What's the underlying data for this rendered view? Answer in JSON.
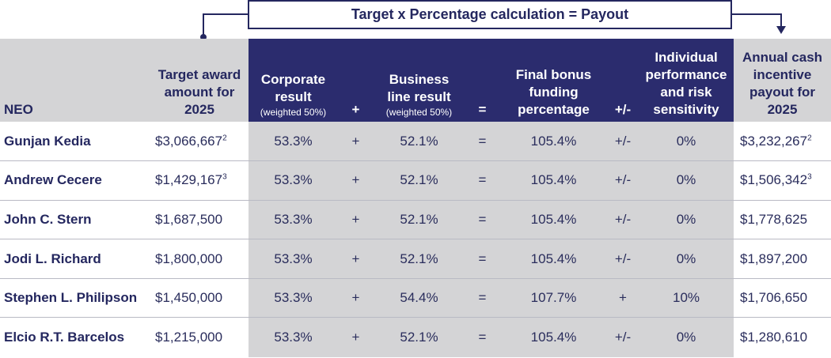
{
  "banner": "Target x Percentage calculation = Payout",
  "headers": {
    "neo": "NEO",
    "target": "Target award amount for 2025",
    "corporate": "Corporate result",
    "corporate_sub": "(weighted 50%)",
    "plus": "+",
    "business": "Business line result",
    "business_sub": "(weighted 50%)",
    "equals": "=",
    "final": "Final bonus funding percentage",
    "plusminus": "+/-",
    "individual": "Individual performance and risk sensitivity",
    "payout": "Annual cash incentive payout for 2025"
  },
  "rows": [
    {
      "name": "Gunjan Kedia",
      "target": "$3,066,667",
      "target_note": "2",
      "corporate": "53.3%",
      "op1": "+",
      "business": "52.1%",
      "op2": "=",
      "final": "105.4%",
      "op3": "+/-",
      "individual": "0%",
      "payout": "$3,232,267",
      "payout_note": "2"
    },
    {
      "name": "Andrew Cecere",
      "target": "$1,429,167",
      "target_note": "3",
      "corporate": "53.3%",
      "op1": "+",
      "business": "52.1%",
      "op2": "=",
      "final": "105.4%",
      "op3": "+/-",
      "individual": "0%",
      "payout": "$1,506,342",
      "payout_note": "3"
    },
    {
      "name": "John C. Stern",
      "target": "$1,687,500",
      "target_note": "",
      "corporate": "53.3%",
      "op1": "+",
      "business": "52.1%",
      "op2": "=",
      "final": "105.4%",
      "op3": "+/-",
      "individual": "0%",
      "payout": "$1,778,625",
      "payout_note": ""
    },
    {
      "name": "Jodi L. Richard",
      "target": "$1,800,000",
      "target_note": "",
      "corporate": "53.3%",
      "op1": "+",
      "business": "52.1%",
      "op2": "=",
      "final": "105.4%",
      "op3": "+/-",
      "individual": "0%",
      "payout": "$1,897,200",
      "payout_note": ""
    },
    {
      "name": "Stephen L. Philipson",
      "target": "$1,450,000",
      "target_note": "",
      "corporate": "53.3%",
      "op1": "+",
      "business": "54.4%",
      "op2": "=",
      "final": "107.7%",
      "op3": "+",
      "individual": "10%",
      "payout": "$1,706,650",
      "payout_note": ""
    },
    {
      "name": "Elcio R.T. Barcelos",
      "target": "$1,215,000",
      "target_note": "",
      "corporate": "53.3%",
      "op1": "+",
      "business": "52.1%",
      "op2": "=",
      "final": "105.4%",
      "op3": "+/-",
      "individual": "0%",
      "payout": "$1,280,610",
      "payout_note": ""
    }
  ]
}
